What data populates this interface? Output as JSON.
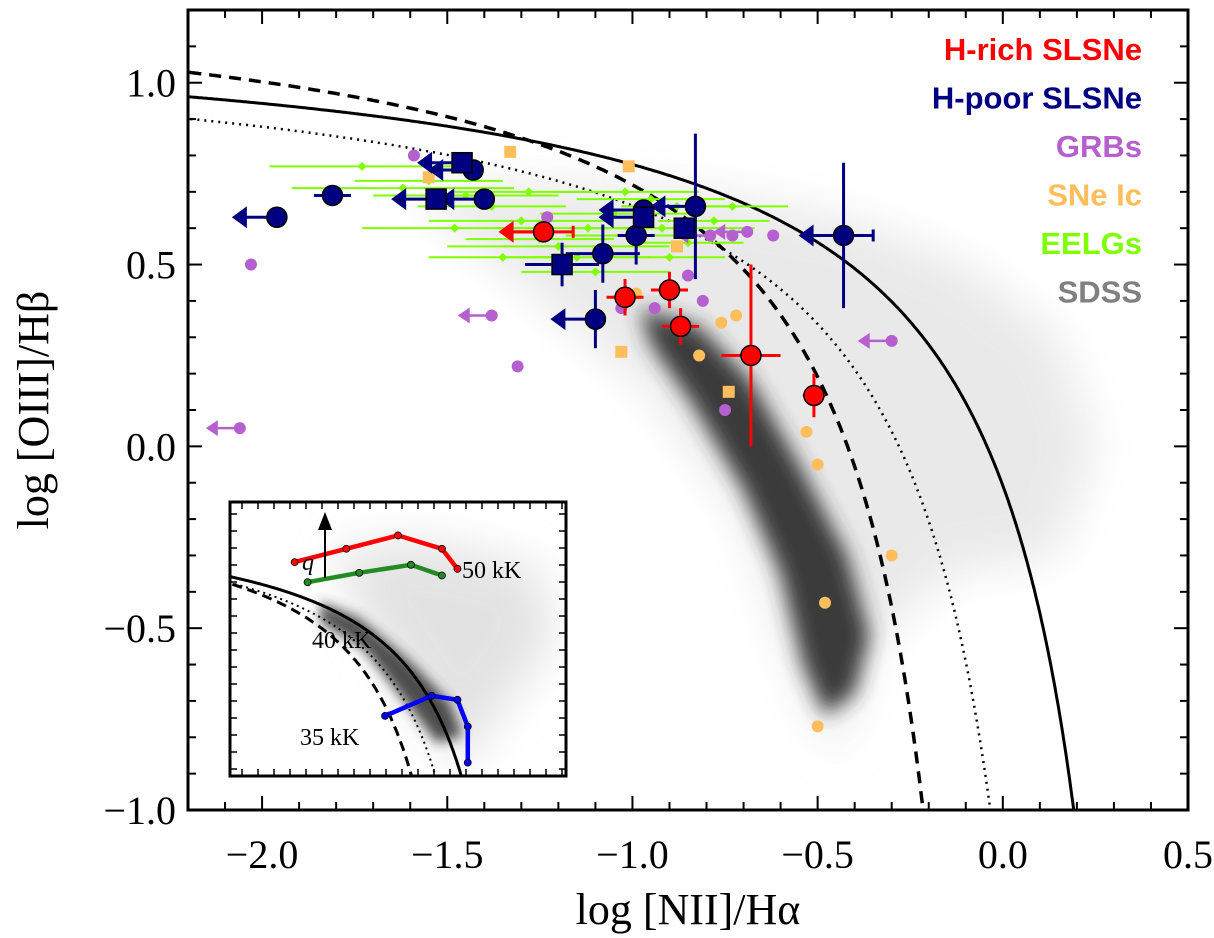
{
  "chart_data": {
    "type": "scatter",
    "xlabel": "log [NII]/Hα",
    "ylabel": "log [OIII]/Hβ",
    "xlim": [
      -2.2,
      0.5
    ],
    "ylim": [
      -1.0,
      1.2
    ],
    "x_ticks": [
      -2.0,
      -1.5,
      -1.0,
      -0.5,
      0.0,
      0.5
    ],
    "x_tick_labels": [
      "−2.0",
      "−1.5",
      "−1.0",
      "−0.5",
      "0.0",
      "0.5"
    ],
    "y_ticks": [
      -1.0,
      -0.5,
      0.0,
      0.5,
      1.0
    ],
    "y_tick_labels": [
      "−1.0",
      "−0.5",
      "0.0",
      "0.5",
      "1.0"
    ],
    "grid": false,
    "legend_position": "top-right",
    "legend": [
      {
        "label": "H-rich SLSNe",
        "color": "#ff0000"
      },
      {
        "label": "H-poor SLSNe",
        "color": "#000080"
      },
      {
        "label": "GRBs",
        "color": "#b65fcf"
      },
      {
        "label": "SNe Ic",
        "color": "#ffbe5c"
      },
      {
        "label": "EELGs",
        "color": "#7fff00"
      },
      {
        "label": "SDSS",
        "color": "#808080"
      }
    ],
    "demarcation_curves": [
      {
        "style": "solid",
        "equation": "0.61/(x-0.47)+1.19"
      },
      {
        "style": "dashed",
        "equation": "0.61/(x-0.05)+1.3"
      },
      {
        "style": "dotted",
        "equation": "0.61/(x-0.25)+1.15"
      }
    ],
    "series": [
      {
        "name": "H-rich SLSNe",
        "color": "#ff0000",
        "marker": "circle",
        "points": [
          {
            "x": -1.24,
            "y": 0.59,
            "xerr": 0.08,
            "upper_limit": true
          },
          {
            "x": -1.02,
            "y": 0.41,
            "xerr": 0.05,
            "yerr": 0.05
          },
          {
            "x": -0.9,
            "y": 0.43,
            "xerr": 0.05,
            "yerr": 0.05
          },
          {
            "x": -0.87,
            "y": 0.33,
            "xerr": 0.05,
            "yerr": 0.05
          },
          {
            "x": -0.68,
            "y": 0.25,
            "xerr": 0.08,
            "yerr": 0.25
          },
          {
            "x": -0.51,
            "y": 0.14,
            "xerr": 0.03,
            "yerr": 0.06
          }
        ]
      },
      {
        "name": "H-poor SLSNe",
        "color": "#000080",
        "marker": "circle/square",
        "points": [
          {
            "x": -1.96,
            "y": 0.63,
            "upper_limit": true
          },
          {
            "x": -1.81,
            "y": 0.69,
            "xerr": 0.05
          },
          {
            "x": -1.43,
            "y": 0.76,
            "upper_limit": true
          },
          {
            "x": -1.4,
            "y": 0.68,
            "upper_limit": true
          },
          {
            "x": -1.1,
            "y": 0.35,
            "yerr": 0.08,
            "upper_limit": true
          },
          {
            "x": -1.08,
            "y": 0.53,
            "xerr": 0.1,
            "yerr": 0.08
          },
          {
            "x": -0.99,
            "y": 0.58,
            "xerr": 0.05,
            "yerr": 0.08
          },
          {
            "x": -0.97,
            "y": 0.65,
            "upper_limit": true
          },
          {
            "x": -0.83,
            "y": 0.66,
            "yerr": 0.2,
            "upper_limit": true
          },
          {
            "x": -0.43,
            "y": 0.58,
            "xerr": 0.08,
            "yerr": 0.2,
            "upper_limit": true
          },
          {
            "x": -1.46,
            "y": 0.78,
            "marker": "square",
            "upper_limit": true
          },
          {
            "x": -1.53,
            "y": 0.68,
            "marker": "square",
            "upper_limit": true
          },
          {
            "x": -1.19,
            "y": 0.5,
            "marker": "square",
            "xerr": 0.1,
            "yerr": 0.06
          },
          {
            "x": -0.97,
            "y": 0.63,
            "marker": "square",
            "upper_limit": true
          },
          {
            "x": -0.86,
            "y": 0.6,
            "marker": "square"
          }
        ]
      },
      {
        "name": "GRBs",
        "color": "#b65fcf",
        "marker": "circle",
        "points": [
          {
            "x": -2.03,
            "y": 0.5
          },
          {
            "x": -1.59,
            "y": 0.8
          },
          {
            "x": -1.38,
            "y": 0.36,
            "upper_limit": true
          },
          {
            "x": -1.31,
            "y": 0.22
          },
          {
            "x": -2.06,
            "y": 0.05,
            "upper_limit": true
          },
          {
            "x": -1.23,
            "y": 0.63
          },
          {
            "x": -1.03,
            "y": 0.38
          },
          {
            "x": -0.94,
            "y": 0.38
          },
          {
            "x": -0.85,
            "y": 0.47
          },
          {
            "x": -0.81,
            "y": 0.4
          },
          {
            "x": -0.75,
            "y": 0.1
          },
          {
            "x": -0.79,
            "y": 0.58,
            "upper_limit": true
          },
          {
            "x": -0.73,
            "y": 0.58
          },
          {
            "x": -0.69,
            "y": 0.59,
            "upper_limit": true
          },
          {
            "x": -0.62,
            "y": 0.58
          },
          {
            "x": -0.3,
            "y": 0.29,
            "upper_limit": true
          }
        ]
      },
      {
        "name": "SNe Ic",
        "color": "#ffbe5c",
        "marker": "circle/square",
        "points": [
          {
            "x": -1.55,
            "y": 0.74,
            "marker": "square"
          },
          {
            "x": -1.33,
            "y": 0.81,
            "marker": "square"
          },
          {
            "x": -1.01,
            "y": 0.77,
            "marker": "square"
          },
          {
            "x": -0.88,
            "y": 0.55,
            "marker": "square"
          },
          {
            "x": -1.03,
            "y": 0.26,
            "marker": "square"
          },
          {
            "x": -0.74,
            "y": 0.15,
            "marker": "square"
          },
          {
            "x": -0.99,
            "y": 0.42
          },
          {
            "x": -0.82,
            "y": 0.25
          },
          {
            "x": -0.76,
            "y": 0.34
          },
          {
            "x": -0.72,
            "y": 0.36
          },
          {
            "x": -0.53,
            "y": 0.04
          },
          {
            "x": -0.5,
            "y": -0.05
          },
          {
            "x": -0.3,
            "y": -0.3
          },
          {
            "x": -0.48,
            "y": -0.43
          },
          {
            "x": -0.5,
            "y": -0.77
          }
        ]
      },
      {
        "name": "EELGs",
        "color": "#7fff00",
        "marker": "diamond",
        "points": [
          {
            "x": -1.73,
            "y": 0.77,
            "xerr": 0.25
          },
          {
            "x": -1.62,
            "y": 0.71,
            "xerr": 0.3
          },
          {
            "x": -1.55,
            "y": 0.73,
            "xerr": 0.2
          },
          {
            "x": -1.45,
            "y": 0.69,
            "xerr": 0.25
          },
          {
            "x": -1.38,
            "y": 0.66,
            "xerr": 0.2
          },
          {
            "x": -1.3,
            "y": 0.62,
            "xerr": 0.25
          },
          {
            "x": -1.25,
            "y": 0.57,
            "xerr": 0.2
          },
          {
            "x": -1.2,
            "y": 0.55,
            "xerr": 0.3
          },
          {
            "x": -1.15,
            "y": 0.52,
            "xerr": 0.2
          },
          {
            "x": -1.12,
            "y": 0.6,
            "xerr": 0.25
          },
          {
            "x": -1.05,
            "y": 0.64,
            "xerr": 0.2
          },
          {
            "x": -1.02,
            "y": 0.7,
            "xerr": 0.2
          },
          {
            "x": -0.95,
            "y": 0.68,
            "xerr": 0.2
          },
          {
            "x": -0.92,
            "y": 0.6,
            "xerr": 0.25
          },
          {
            "x": -0.88,
            "y": 0.66,
            "xerr": 0.15
          },
          {
            "x": -0.85,
            "y": 0.56,
            "xerr": 0.15
          },
          {
            "x": -0.78,
            "y": 0.62,
            "xerr": 0.15
          },
          {
            "x": -0.73,
            "y": 0.66,
            "xerr": 0.15
          },
          {
            "x": -1.35,
            "y": 0.52,
            "xerr": 0.2
          },
          {
            "x": -1.1,
            "y": 0.48,
            "xerr": 0.2
          },
          {
            "x": -1.28,
            "y": 0.7,
            "xerr": 0.2
          },
          {
            "x": -1.48,
            "y": 0.6,
            "xerr": 0.25
          },
          {
            "x": -0.98,
            "y": 0.58,
            "xerr": 0.2
          },
          {
            "x": -0.9,
            "y": 0.52,
            "xerr": 0.15
          }
        ]
      }
    ],
    "inset": {
      "annotations": [
        "q",
        "50 kK",
        "40 kK",
        "35 kK"
      ],
      "model_tracks": [
        {
          "label": "50 kK",
          "color": "#ff0000",
          "points": [
            [
              -2.05,
              0.6
            ],
            [
              -1.85,
              0.7
            ],
            [
              -1.65,
              0.8
            ],
            [
              -1.48,
              0.7
            ],
            [
              -1.42,
              0.55
            ]
          ]
        },
        {
          "label": "40 kK",
          "color": "#228b22",
          "points": [
            [
              -2.0,
              0.45
            ],
            [
              -1.8,
              0.52
            ],
            [
              -1.6,
              0.58
            ],
            [
              -1.48,
              0.5
            ]
          ]
        },
        {
          "label": "35 kK",
          "color": "#0000ff",
          "points": [
            [
              -1.7,
              -0.55
            ],
            [
              -1.52,
              -0.4
            ],
            [
              -1.42,
              -0.43
            ],
            [
              -1.38,
              -0.63
            ],
            [
              -1.38,
              -0.9
            ]
          ]
        }
      ]
    }
  }
}
